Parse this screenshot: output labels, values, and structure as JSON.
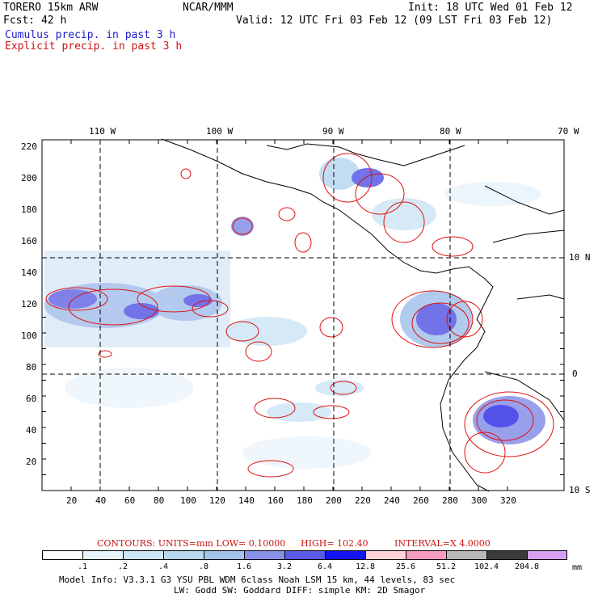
{
  "header": {
    "model": "TORERO  15km ARW",
    "org": "NCAR/MMM",
    "init": "Init: 18 UTC Wed 01 Feb 12",
    "fcst": "Fcst:   42 h",
    "valid": "Valid: 12 UTC Fri 03 Feb 12 (09 LST Fri 03 Feb 12)",
    "field_cumulus": "Cumulus precip. in past 3 h",
    "field_explicit": "Explicit precip. in past 3 h"
  },
  "map": {
    "lon_labels": [
      "110 W",
      "100 W",
      "90 W",
      "80 W",
      "70 W"
    ],
    "lat_labels": [
      "10 N",
      "0",
      "10 S"
    ],
    "y_ticks": [
      "220",
      "200",
      "180",
      "160",
      "140",
      "120",
      "100",
      "80",
      "60",
      "40",
      "20"
    ],
    "x_ticks": [
      "20",
      "40",
      "60",
      "80",
      "100",
      "120",
      "140",
      "160",
      "180",
      "200",
      "220",
      "240",
      "260",
      "280",
      "300",
      "320"
    ],
    "colors": {
      "cumulus": "#4040e0",
      "explicit": "#dd1010",
      "coast": "#000000"
    }
  },
  "contours": {
    "units": "CONTOURS:  UNITS=mm  LOW= 0.10000",
    "high": "HIGH=  102.40",
    "interval": "INTERVAL=X  4.0000"
  },
  "colorbar": {
    "labels": [
      ".1",
      ".2",
      ".4",
      ".8",
      "1.6",
      "3.2",
      "6.4",
      "12.8",
      "25.6",
      "51.2",
      "102.4",
      "204.8"
    ],
    "unit": "mm",
    "colors": [
      "#ffffff",
      "#e8f4fb",
      "#cfe6f5",
      "#b8d8f0",
      "#a4c2ec",
      "#8890e8",
      "#5a5ae6",
      "#1414f0",
      "#fcd4d8",
      "#f59ac0",
      "#b8b8b8",
      "#3a3a3a",
      "#d8a0f0"
    ]
  },
  "footer": {
    "line1": "Model Info: V3.3.1    G3     YSU PBL  WDM 6class  Noah LSM  15 km,    44 levels,   83 sec",
    "line2": "LW: Godd SW: Goddard DIFF: simple KM: 2D Smagor"
  }
}
